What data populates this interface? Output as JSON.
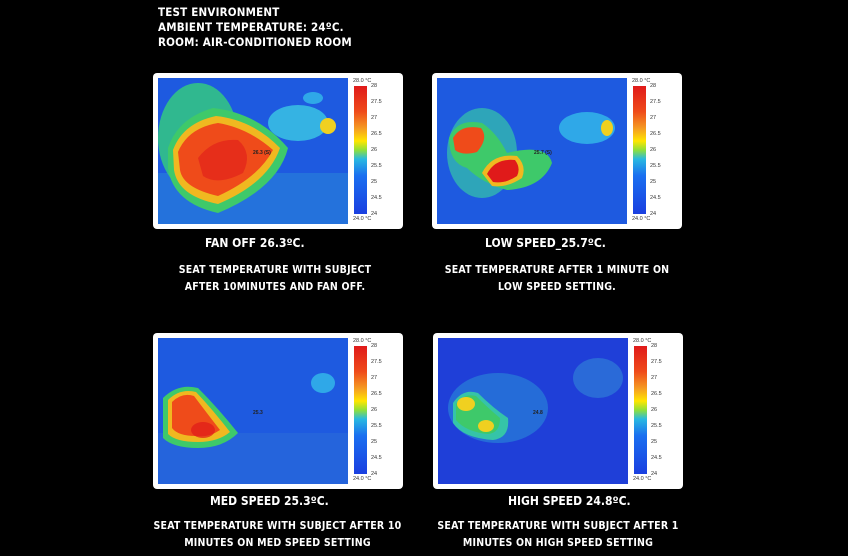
{
  "header": {
    "line1": "TEST ENVIRONMENT",
    "line2": "AMBIENT TEMPERATURE: 24ºC.",
    "line3": "ROOM: AIR-CONDITIONED ROOM"
  },
  "scale": {
    "max_label": "28.0 °C",
    "min_label": "24.0 °C",
    "ticks": [
      "28",
      "27.5",
      "27",
      "26.5",
      "26",
      "25.5",
      "25",
      "24.5",
      "24"
    ]
  },
  "panels": [
    {
      "caption": "FAN OFF 26.3ºC.",
      "description": "SEAT TEMPERATURE WITH SUBJECT AFTER 10MINUTES AND FAN OFF.",
      "marker": "26.3 (S)"
    },
    {
      "caption": "LOW SPEED_25.7ºC.",
      "description": "SEAT TEMPERATURE AFTER 1 MINUTE ON LOW SPEED SETTING.",
      "marker": "25.7 (S)"
    },
    {
      "caption": "MED SPEED 25.3ºC.",
      "description": "SEAT TEMPERATURE WITH SUBJECT AFTER 10 MINUTES ON MED SPEED SETTING",
      "marker": "25.3"
    },
    {
      "caption": "HIGH SPEED 24.8ºC.",
      "description": "SEAT TEMPERATURE WITH SUBJECT AFTER 1 MINUTES ON HIGH SPEED SETTING",
      "marker": "24.8"
    }
  ]
}
